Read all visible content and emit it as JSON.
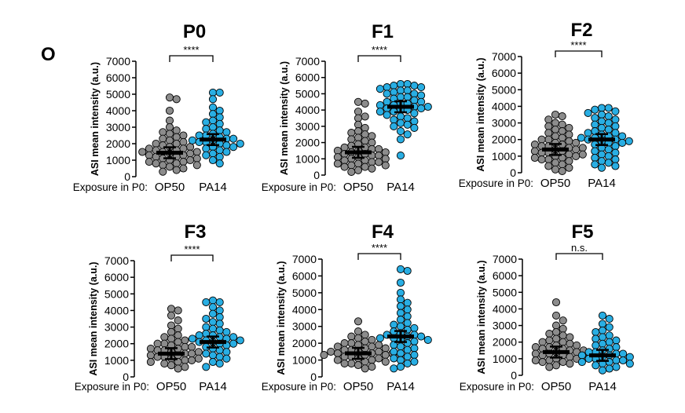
{
  "panel_letter": "O",
  "colors": {
    "op50": "#8c8c8c",
    "pa14": "#29aee3",
    "stroke": "#000000"
  },
  "common": {
    "ylabel": "ASI mean intensity (a.u.)",
    "exposure_label": "Exposure in P0:",
    "categories": [
      "OP50",
      "PA14"
    ],
    "yticks": [
      0,
      1000,
      2000,
      3000,
      4000,
      5000,
      6000,
      7000
    ],
    "ylim": [
      0,
      7000
    ]
  },
  "chart_data": [
    {
      "type": "scatter",
      "title": "P0",
      "significance": "****",
      "xlabel": "Exposure in P0:",
      "ylabel": "ASI mean intensity (a.u.)",
      "categories": [
        "OP50",
        "PA14"
      ],
      "ylim": [
        0,
        7000
      ],
      "series": [
        {
          "name": "OP50",
          "mean": 1450,
          "values": [
            4800,
            4700,
            4000,
            3400,
            3000,
            2800,
            2700,
            2600,
            2500,
            2400,
            2300,
            2200,
            2100,
            2000,
            2000,
            1900,
            1800,
            1800,
            1700,
            1700,
            1600,
            1600,
            1500,
            1500,
            1500,
            1400,
            1400,
            1300,
            1300,
            1200,
            1200,
            1100,
            1100,
            1000,
            1000,
            900,
            900,
            800,
            800,
            700,
            700,
            600,
            500,
            400,
            300
          ]
        },
        {
          "name": "PA14",
          "mean": 2250,
          "values": [
            5100,
            5100,
            4700,
            4200,
            4000,
            3800,
            3600,
            3400,
            3300,
            3200,
            3000,
            2900,
            2800,
            2700,
            2600,
            2500,
            2500,
            2400,
            2300,
            2300,
            2200,
            2200,
            2100,
            2100,
            2000,
            2000,
            1900,
            1800,
            1800,
            1700,
            1600,
            1500,
            1400,
            1300,
            1200,
            1000,
            800
          ]
        }
      ]
    },
    {
      "type": "scatter",
      "title": "F1",
      "significance": "****",
      "xlabel": "Exposure in P0:",
      "ylabel": "ASI mean intensity (a.u.)",
      "categories": [
        "OP50",
        "PA14"
      ],
      "ylim": [
        0,
        7000
      ],
      "series": [
        {
          "name": "OP50",
          "mean": 1400,
          "values": [
            4500,
            4400,
            3900,
            3600,
            3500,
            3100,
            2900,
            2700,
            2600,
            2500,
            2400,
            2300,
            2200,
            2100,
            2000,
            1900,
            1800,
            1700,
            1700,
            1600,
            1600,
            1500,
            1500,
            1400,
            1400,
            1300,
            1300,
            1200,
            1200,
            1100,
            1100,
            1000,
            1000,
            900,
            900,
            800,
            800,
            700,
            700,
            600,
            600,
            500,
            500,
            400,
            300,
            200
          ]
        },
        {
          "name": "PA14",
          "mean": 4200,
          "values": [
            5600,
            5600,
            5500,
            5500,
            5400,
            5400,
            5300,
            5200,
            5200,
            5100,
            5000,
            5000,
            4900,
            4800,
            4800,
            4700,
            4600,
            4500,
            4500,
            4400,
            4400,
            4300,
            4300,
            4200,
            4200,
            4100,
            4100,
            4000,
            4000,
            3900,
            3900,
            3800,
            3700,
            3600,
            3500,
            3400,
            3300,
            3200,
            3100,
            3000,
            2900,
            2700,
            2500,
            2200,
            1200
          ]
        }
      ]
    },
    {
      "type": "scatter",
      "title": "F2",
      "significance": "****",
      "xlabel": "Exposure in P0:",
      "ylabel": "ASI mean intensity (a.u.)",
      "categories": [
        "OP50",
        "PA14"
      ],
      "ylim": [
        0,
        7000
      ],
      "series": [
        {
          "name": "OP50",
          "mean": 1400,
          "values": [
            3500,
            3400,
            3200,
            3000,
            2900,
            2800,
            2700,
            2600,
            2500,
            2400,
            2300,
            2200,
            2100,
            2000,
            2000,
            1900,
            1800,
            1800,
            1700,
            1700,
            1600,
            1600,
            1500,
            1500,
            1400,
            1400,
            1300,
            1300,
            1200,
            1200,
            1100,
            1100,
            1000,
            1000,
            900,
            900,
            800,
            800,
            700,
            600,
            500,
            400,
            300,
            200,
            100
          ]
        },
        {
          "name": "PA14",
          "mean": 2000,
          "values": [
            3900,
            3900,
            3800,
            3700,
            3600,
            3500,
            3400,
            3300,
            3200,
            3100,
            3000,
            2900,
            2800,
            2700,
            2600,
            2500,
            2400,
            2400,
            2300,
            2200,
            2200,
            2100,
            2100,
            2000,
            2000,
            1900,
            1900,
            1800,
            1800,
            1700,
            1600,
            1500,
            1400,
            1300,
            1200,
            1100,
            1000,
            900,
            800,
            700,
            600,
            500,
            400,
            300
          ]
        }
      ]
    },
    {
      "type": "scatter",
      "title": "F3",
      "significance": "****",
      "xlabel": "Exposure in P0:",
      "ylabel": "ASI mean intensity (a.u.)",
      "categories": [
        "OP50",
        "PA14"
      ],
      "ylim": [
        0,
        7000
      ],
      "series": [
        {
          "name": "OP50",
          "mean": 1400,
          "values": [
            4100,
            4000,
            3700,
            3400,
            3100,
            2900,
            2700,
            2500,
            2400,
            2300,
            2200,
            2100,
            2000,
            2000,
            1900,
            1800,
            1800,
            1700,
            1700,
            1600,
            1600,
            1500,
            1500,
            1400,
            1400,
            1300,
            1300,
            1200,
            1200,
            1100,
            1100,
            1000,
            1000,
            900,
            900,
            800,
            700,
            600,
            500
          ]
        },
        {
          "name": "PA14",
          "mean": 2100,
          "values": [
            4600,
            4500,
            4500,
            4200,
            4000,
            3800,
            3600,
            3500,
            3300,
            3200,
            3000,
            2900,
            2800,
            2700,
            2600,
            2500,
            2500,
            2400,
            2400,
            2300,
            2300,
            2200,
            2200,
            2100,
            2100,
            2000,
            2000,
            1900,
            1800,
            1700,
            1600,
            1500,
            1400,
            1300,
            1200,
            1100,
            900,
            800,
            600
          ]
        }
      ]
    },
    {
      "type": "scatter",
      "title": "F4",
      "significance": "****",
      "xlabel": "Exposure in P0:",
      "ylabel": "ASI mean intensity (a.u.)",
      "categories": [
        "OP50",
        "PA14"
      ],
      "ylim": [
        0,
        7000
      ],
      "series": [
        {
          "name": "OP50",
          "mean": 1400,
          "values": [
            3300,
            2700,
            2500,
            2400,
            2300,
            2200,
            2100,
            2000,
            2000,
            1900,
            1900,
            1800,
            1800,
            1700,
            1700,
            1600,
            1600,
            1500,
            1500,
            1500,
            1400,
            1400,
            1400,
            1300,
            1300,
            1300,
            1200,
            1200,
            1200,
            1100,
            1100,
            1000,
            1000,
            900,
            900,
            800,
            800,
            700,
            600,
            500
          ]
        },
        {
          "name": "PA14",
          "mean": 2400,
          "values": [
            6400,
            6300,
            5600,
            5000,
            4600,
            4400,
            4200,
            4000,
            3800,
            3600,
            3400,
            3200,
            3100,
            3000,
            2900,
            2800,
            2700,
            2600,
            2500,
            2500,
            2400,
            2400,
            2300,
            2300,
            2200,
            2200,
            2100,
            2000,
            1900,
            1800,
            1700,
            1600,
            1500,
            1400,
            1300,
            1200,
            1100,
            1000,
            900,
            800,
            600,
            500
          ]
        }
      ]
    },
    {
      "type": "scatter",
      "title": "F5",
      "significance": "n.s.",
      "xlabel": "Exposure in P0:",
      "ylabel": "ASI mean intensity (a.u.)",
      "categories": [
        "OP50",
        "PA14"
      ],
      "ylim": [
        0,
        7000
      ],
      "series": [
        {
          "name": "OP50",
          "mean": 1400,
          "values": [
            4400,
            3600,
            3300,
            3000,
            2800,
            2600,
            2500,
            2400,
            2300,
            2200,
            2100,
            2000,
            2000,
            1900,
            1800,
            1800,
            1700,
            1700,
            1600,
            1600,
            1500,
            1500,
            1400,
            1400,
            1300,
            1300,
            1200,
            1200,
            1100,
            1100,
            1000,
            1000,
            900,
            900,
            800,
            800,
            700,
            600,
            500
          ]
        },
        {
          "name": "PA14",
          "mean": 1200,
          "values": [
            3600,
            3400,
            3100,
            2900,
            2700,
            2600,
            2400,
            2300,
            2200,
            2100,
            2000,
            1900,
            1800,
            1700,
            1600,
            1500,
            1400,
            1400,
            1300,
            1300,
            1200,
            1200,
            1100,
            1100,
            1000,
            1000,
            900,
            900,
            800,
            800,
            700,
            700,
            600,
            500,
            400,
            300
          ]
        }
      ]
    }
  ]
}
